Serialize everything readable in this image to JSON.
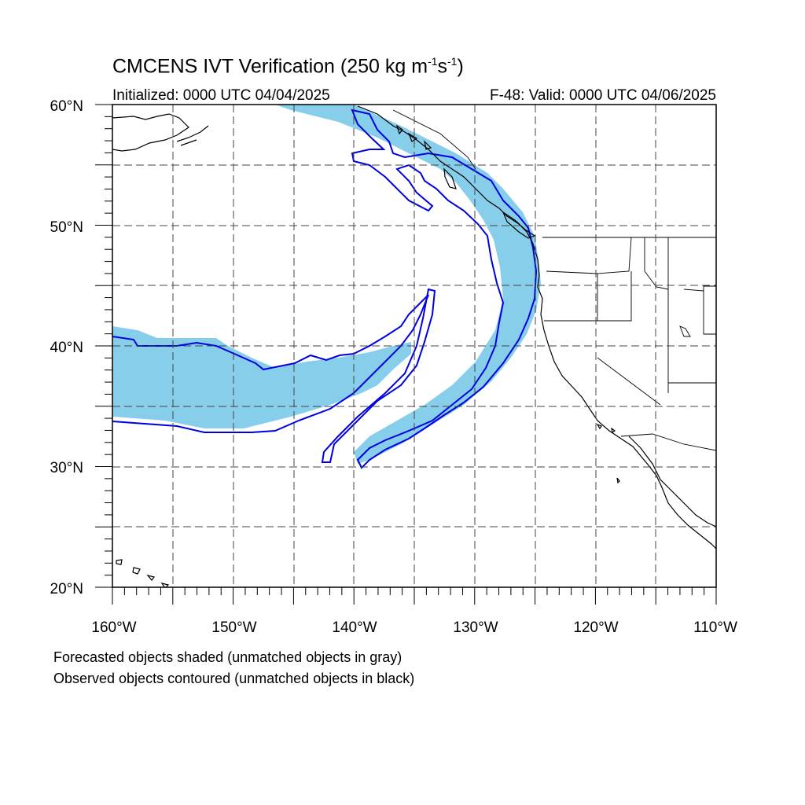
{
  "title": {
    "prefix": "CMCENS IVT Verification (250 kg m",
    "sup1": "-1",
    "mid": "s",
    "sup2": "-1",
    "suffix": ")"
  },
  "initialized": "Initialized: 0000 UTC 04/04/2025",
  "valid": "F-48: Valid: 0000 UTC 04/06/2025",
  "notes": {
    "forecast": "Forecasted objects shaded (unmatched objects in gray)",
    "observed": "Observed objects contoured (unmatched objects in black)"
  },
  "colors": {
    "forecast_fill": "#87ceeb",
    "observed_contour": "#0000e0",
    "coastline": "#000000",
    "grid": "#444444"
  },
  "map": {
    "projection": "cylindrical-equidistant",
    "lon_range": [
      -160,
      -110
    ],
    "lat_range": [
      20,
      60
    ],
    "grid_lines": "dashed",
    "lat_labels": [
      "60°N",
      "50°N",
      "40°N",
      "30°N",
      "20°N"
    ],
    "lon_labels": [
      "160°W",
      "150°W",
      "140°W",
      "130°W",
      "120°W",
      "110°W"
    ]
  }
}
